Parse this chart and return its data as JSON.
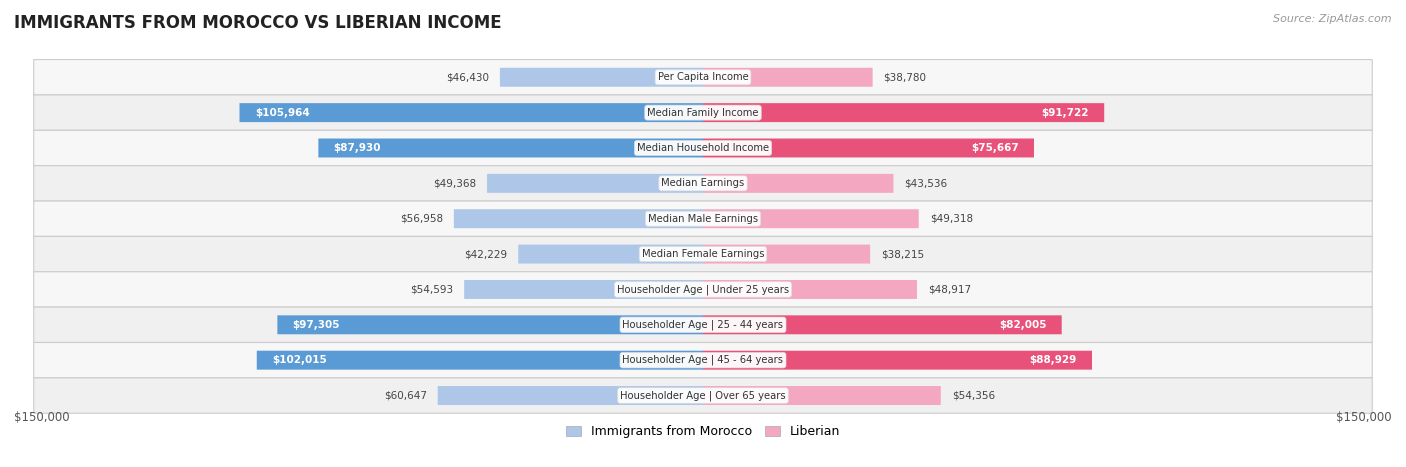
{
  "title": "IMMIGRANTS FROM MOROCCO VS LIBERIAN INCOME",
  "source": "Source: ZipAtlas.com",
  "categories": [
    "Per Capita Income",
    "Median Family Income",
    "Median Household Income",
    "Median Earnings",
    "Median Male Earnings",
    "Median Female Earnings",
    "Householder Age | Under 25 years",
    "Householder Age | 25 - 44 years",
    "Householder Age | 45 - 64 years",
    "Householder Age | Over 65 years"
  ],
  "morocco_values": [
    46430,
    105964,
    87930,
    49368,
    56958,
    42229,
    54593,
    97305,
    102015,
    60647
  ],
  "liberian_values": [
    38780,
    91722,
    75667,
    43536,
    49318,
    38215,
    48917,
    82005,
    88929,
    54356
  ],
  "morocco_color_light": "#aec6e8",
  "morocco_color_dark": "#5b9bd5",
  "liberian_color_light": "#f4a7c0",
  "liberian_color_dark": "#e8527a",
  "max_value": 150000,
  "bar_height": 0.52,
  "threshold_inside": 70000,
  "xlabel_left": "$150,000",
  "xlabel_right": "$150,000",
  "legend_morocco": "Immigrants from Morocco",
  "legend_liberian": "Liberian"
}
